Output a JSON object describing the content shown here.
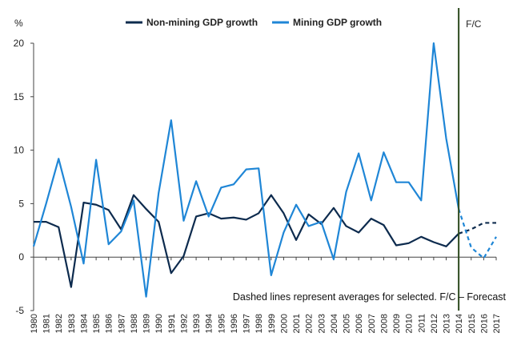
{
  "chart_data": {
    "type": "line",
    "ylabel": "%",
    "ylim": [
      -5,
      20
    ],
    "yticks": [
      -5,
      0,
      5,
      10,
      15,
      20
    ],
    "x": [
      "1980",
      "1981",
      "1982",
      "1983",
      "1984",
      "1985",
      "1986",
      "1987",
      "1988",
      "1989",
      "1990",
      "1991",
      "1992",
      "1993",
      "1994",
      "1995",
      "1996",
      "1997",
      "1998",
      "1999",
      "2000",
      "2001",
      "2002",
      "2003",
      "2004",
      "2005",
      "2006",
      "2007",
      "2008",
      "2009",
      "2010",
      "2011",
      "2012",
      "2013",
      "2014",
      "2015",
      "2016",
      "2017"
    ],
    "forecast_start": "2014",
    "forecast_label": "F/C",
    "note": "Dashed lines represent averages for selected. F/C – Forecast",
    "legend_placement": "top",
    "series": [
      {
        "name": "Non-mining GDP growth",
        "color": "#0d2b4e",
        "values": [
          3.3,
          3.3,
          2.8,
          -2.8,
          5.1,
          4.9,
          4.4,
          2.6,
          5.8,
          4.5,
          3.3,
          -1.5,
          0.1,
          3.8,
          4.1,
          3.6,
          3.7,
          3.5,
          4.1,
          5.8,
          4.1,
          1.6,
          4.0,
          3.1,
          4.6,
          2.9,
          2.3,
          3.6,
          3.0,
          1.1,
          1.3,
          1.9,
          1.4,
          1.0,
          2.2,
          2.6,
          3.2,
          3.2
        ]
      },
      {
        "name": "Mining GDP growth",
        "color": "#1f86d6",
        "values": [
          1.0,
          5.0,
          9.2,
          4.7,
          -0.6,
          9.1,
          1.2,
          2.4,
          5.3,
          -3.7,
          6.0,
          12.8,
          3.4,
          7.1,
          3.8,
          6.5,
          6.8,
          8.2,
          8.3,
          -1.7,
          2.3,
          4.9,
          2.9,
          3.3,
          -0.2,
          6.1,
          9.7,
          5.3,
          9.8,
          7.0,
          7.0,
          5.3,
          20.0,
          11.1,
          4.5,
          0.9,
          -0.1,
          1.9
        ]
      }
    ]
  }
}
